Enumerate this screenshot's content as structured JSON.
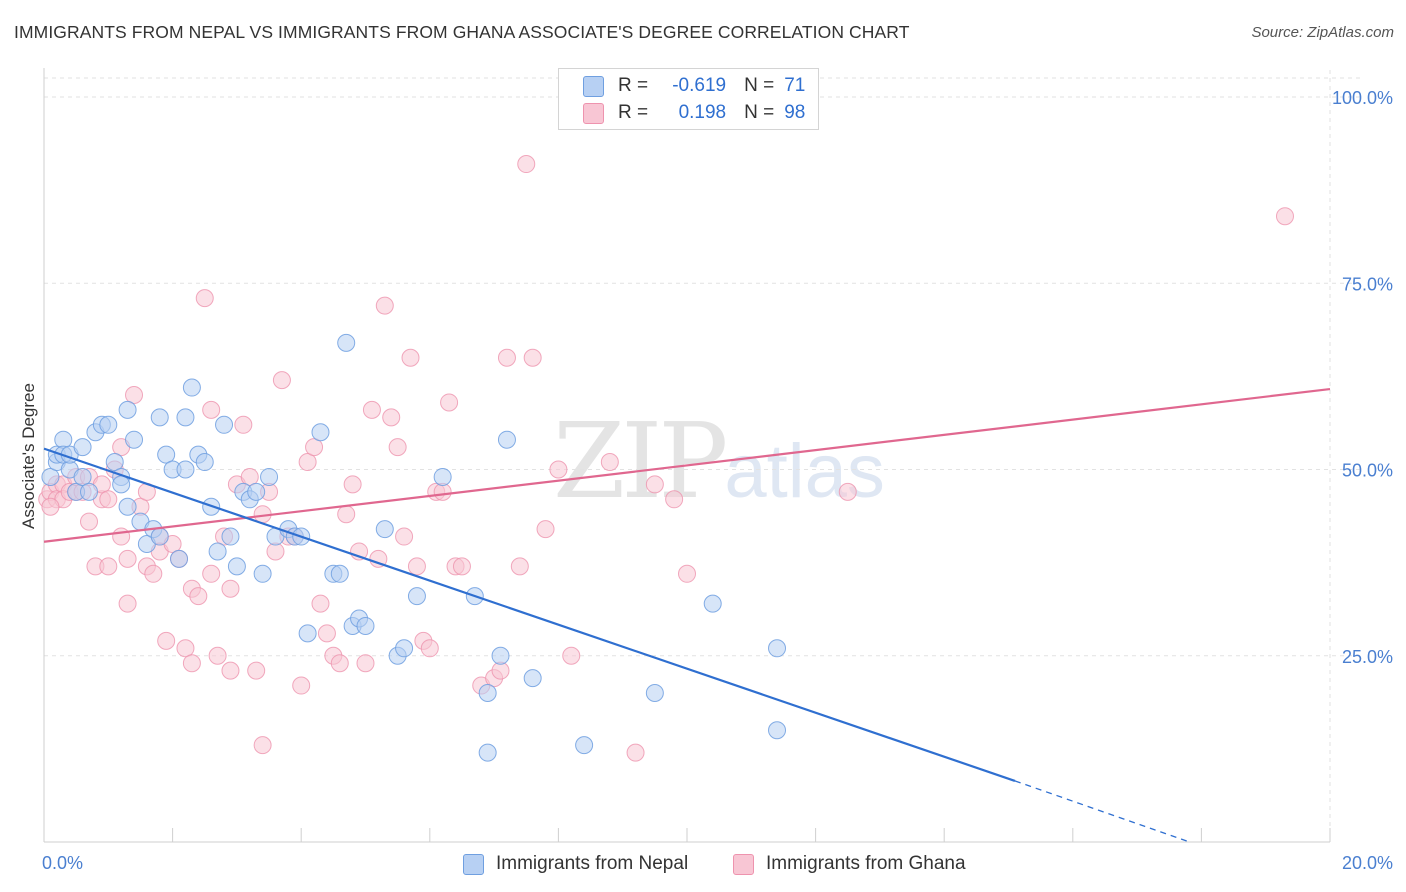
{
  "title": "IMMIGRANTS FROM NEPAL VS IMMIGRANTS FROM GHANA ASSOCIATE'S DEGREE CORRELATION CHART",
  "source": "Source: ZipAtlas.com",
  "watermark": {
    "zip": "ZIP",
    "atlas": "atlas"
  },
  "legend": {
    "r_label": "R =",
    "n_label": "N =",
    "rows": [
      {
        "r": "-0.619",
        "n": "71"
      },
      {
        "r": "0.198",
        "n": "98"
      }
    ]
  },
  "colors": {
    "nepal_fill": "#b7d0f3",
    "nepal_stroke": "#6f9fe0",
    "nepal_line": "#2f6fd0",
    "ghana_fill": "#f8c6d4",
    "ghana_stroke": "#ee93ae",
    "ghana_line": "#e0678f",
    "grid": "#e2e2e2",
    "tick_label": "#4a7fd0"
  },
  "chart_data": {
    "type": "scatter",
    "xlabel": "",
    "ylabel": "Associate's Degree",
    "xlim": [
      0,
      20
    ],
    "ylim": [
      0,
      105
    ],
    "x_tick_labels": [
      "0.0%",
      "20.0%"
    ],
    "y_ticks": [
      25,
      50,
      75,
      100
    ],
    "y_tick_labels": [
      "25.0%",
      "50.0%",
      "75.0%",
      "100.0%"
    ],
    "grid": true,
    "legend_position": "top-center",
    "series": [
      {
        "name": "Immigrants from Nepal",
        "trend": {
          "x0": 0,
          "y0": 52.8,
          "x1": 15.1,
          "y1": 8.2,
          "dash_to_x": 20,
          "dash_to_y": -6.6
        },
        "points": [
          [
            0.1,
            49
          ],
          [
            0.2,
            51
          ],
          [
            0.2,
            52
          ],
          [
            0.3,
            54
          ],
          [
            0.3,
            52
          ],
          [
            0.4,
            50
          ],
          [
            0.4,
            52
          ],
          [
            0.5,
            47
          ],
          [
            0.6,
            53
          ],
          [
            0.6,
            49
          ],
          [
            0.7,
            47
          ],
          [
            0.8,
            55
          ],
          [
            0.9,
            56
          ],
          [
            1.0,
            56
          ],
          [
            1.1,
            51
          ],
          [
            1.2,
            49
          ],
          [
            1.2,
            48
          ],
          [
            1.3,
            58
          ],
          [
            1.3,
            45
          ],
          [
            1.4,
            54
          ],
          [
            1.5,
            43
          ],
          [
            1.6,
            40
          ],
          [
            1.7,
            42
          ],
          [
            1.8,
            41
          ],
          [
            1.8,
            57
          ],
          [
            1.9,
            52
          ],
          [
            2.0,
            50
          ],
          [
            2.1,
            38
          ],
          [
            2.2,
            57
          ],
          [
            2.2,
            50
          ],
          [
            2.3,
            61
          ],
          [
            2.4,
            52
          ],
          [
            2.5,
            51
          ],
          [
            2.6,
            45
          ],
          [
            2.7,
            39
          ],
          [
            2.8,
            56
          ],
          [
            2.9,
            41
          ],
          [
            3.0,
            37
          ],
          [
            3.1,
            47
          ],
          [
            3.2,
            46
          ],
          [
            3.3,
            47
          ],
          [
            3.4,
            36
          ],
          [
            3.5,
            49
          ],
          [
            3.6,
            41
          ],
          [
            3.8,
            42
          ],
          [
            3.9,
            41
          ],
          [
            4.0,
            41
          ],
          [
            4.1,
            28
          ],
          [
            4.3,
            55
          ],
          [
            4.5,
            36
          ],
          [
            4.6,
            36
          ],
          [
            4.7,
            67
          ],
          [
            4.8,
            29
          ],
          [
            4.9,
            30
          ],
          [
            5.0,
            29
          ],
          [
            5.3,
            42
          ],
          [
            5.5,
            25
          ],
          [
            5.6,
            26
          ],
          [
            5.8,
            33
          ],
          [
            6.2,
            49
          ],
          [
            6.7,
            33
          ],
          [
            6.9,
            20
          ],
          [
            6.9,
            12
          ],
          [
            7.1,
            25
          ],
          [
            7.2,
            54
          ],
          [
            7.6,
            22
          ],
          [
            8.4,
            13
          ],
          [
            9.5,
            20
          ],
          [
            10.4,
            32
          ],
          [
            11.4,
            26
          ],
          [
            11.4,
            15
          ]
        ]
      },
      {
        "name": "Immigrants from Ghana",
        "trend": {
          "x0": 0,
          "y0": 40.3,
          "x1": 20,
          "y1": 60.8
        },
        "points": [
          [
            0.05,
            46
          ],
          [
            0.1,
            47
          ],
          [
            0.2,
            48
          ],
          [
            0.2,
            46
          ],
          [
            0.3,
            48
          ],
          [
            0.3,
            46
          ],
          [
            0.4,
            47
          ],
          [
            0.5,
            47
          ],
          [
            0.5,
            49
          ],
          [
            0.6,
            47
          ],
          [
            0.7,
            49
          ],
          [
            0.7,
            43
          ],
          [
            0.8,
            37
          ],
          [
            0.9,
            46
          ],
          [
            0.9,
            48
          ],
          [
            1.0,
            37
          ],
          [
            1.0,
            46
          ],
          [
            1.1,
            50
          ],
          [
            1.2,
            53
          ],
          [
            1.2,
            41
          ],
          [
            1.3,
            38
          ],
          [
            1.3,
            32
          ],
          [
            1.4,
            60
          ],
          [
            1.5,
            45
          ],
          [
            1.6,
            37
          ],
          [
            1.6,
            47
          ],
          [
            1.7,
            36
          ],
          [
            1.8,
            41
          ],
          [
            1.8,
            39
          ],
          [
            1.9,
            27
          ],
          [
            2.0,
            40
          ],
          [
            2.1,
            38
          ],
          [
            2.2,
            26
          ],
          [
            2.3,
            34
          ],
          [
            2.3,
            24
          ],
          [
            2.4,
            33
          ],
          [
            2.5,
            73
          ],
          [
            2.6,
            58
          ],
          [
            2.6,
            36
          ],
          [
            2.7,
            25
          ],
          [
            2.8,
            41
          ],
          [
            2.9,
            23
          ],
          [
            2.9,
            34
          ],
          [
            3.0,
            48
          ],
          [
            3.1,
            56
          ],
          [
            3.2,
            49
          ],
          [
            3.3,
            23
          ],
          [
            3.4,
            44
          ],
          [
            3.4,
            13
          ],
          [
            3.5,
            47
          ],
          [
            3.6,
            39
          ],
          [
            3.7,
            62
          ],
          [
            3.8,
            41
          ],
          [
            3.9,
            41
          ],
          [
            4.0,
            21
          ],
          [
            4.1,
            51
          ],
          [
            4.2,
            53
          ],
          [
            4.3,
            32
          ],
          [
            4.4,
            28
          ],
          [
            4.5,
            25
          ],
          [
            4.6,
            24
          ],
          [
            4.7,
            44
          ],
          [
            4.8,
            48
          ],
          [
            4.9,
            39
          ],
          [
            5.0,
            24
          ],
          [
            5.1,
            58
          ],
          [
            5.2,
            38
          ],
          [
            5.3,
            72
          ],
          [
            5.4,
            57
          ],
          [
            5.5,
            53
          ],
          [
            5.6,
            41
          ],
          [
            5.7,
            65
          ],
          [
            5.8,
            37
          ],
          [
            5.9,
            27
          ],
          [
            6.0,
            26
          ],
          [
            6.1,
            47
          ],
          [
            6.2,
            47
          ],
          [
            6.3,
            59
          ],
          [
            6.4,
            37
          ],
          [
            6.5,
            37
          ],
          [
            6.8,
            21
          ],
          [
            7.0,
            22
          ],
          [
            7.1,
            23
          ],
          [
            7.2,
            65
          ],
          [
            7.4,
            37
          ],
          [
            7.5,
            91
          ],
          [
            7.6,
            65
          ],
          [
            7.8,
            42
          ],
          [
            8.0,
            50
          ],
          [
            8.2,
            25
          ],
          [
            8.8,
            51
          ],
          [
            9.2,
            12
          ],
          [
            9.5,
            48
          ],
          [
            9.8,
            46
          ],
          [
            10.0,
            36
          ],
          [
            12.5,
            47
          ],
          [
            19.3,
            84
          ],
          [
            0.1,
            45
          ]
        ]
      }
    ]
  }
}
